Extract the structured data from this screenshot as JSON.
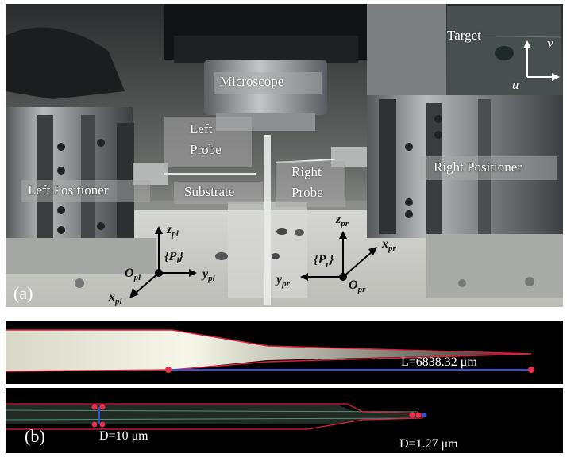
{
  "photo": {
    "labels": {
      "target": "Target",
      "microscope": "Microscope",
      "left_probe_line1": "Left",
      "left_probe_line2": "Probe",
      "left_positioner": "Left Positioner",
      "substrate": "Substrate",
      "right_probe_line1": "Right",
      "right_probe_line2": "Probe",
      "right_positioner": "Right Positioner",
      "panel": "(a)"
    },
    "image_axes": {
      "u": "u",
      "v": "v"
    },
    "left_frame": {
      "name": "{P",
      "name_sub": "l",
      "origin": "O",
      "origin_sub": "pl",
      "z": "z",
      "z_sub": "pl",
      "y": "y",
      "y_sub": "pl",
      "x": "x",
      "x_sub": "pl"
    },
    "right_frame": {
      "name": "{P",
      "name_sub": "r",
      "origin": "O",
      "origin_sub": "pr",
      "z": "z",
      "z_sub": "pr",
      "y": "y",
      "y_sub": "pr",
      "x": "x",
      "x_sub": "pr"
    }
  },
  "measurements": {
    "panel": "(b)",
    "length": "L=6838.32 μm",
    "diameter_base": "D=10 μm",
    "diameter_tip": "D=1.27 μm"
  },
  "colors": {
    "outline": "#e0203a",
    "measure_line": "#3050e0",
    "marker": "#e8304a"
  }
}
